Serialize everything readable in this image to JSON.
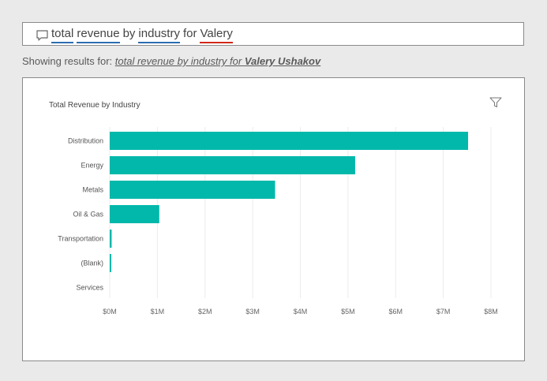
{
  "qa": {
    "words": [
      {
        "text": "total",
        "underline": "blue"
      },
      {
        "text": "revenue",
        "underline": "blue"
      },
      {
        "text": "by",
        "underline": "none"
      },
      {
        "text": "industry",
        "underline": "blue"
      },
      {
        "text": "for",
        "underline": "none"
      },
      {
        "text": "Valery",
        "underline": "red"
      }
    ],
    "icon": "speech-bubble-icon"
  },
  "showing": {
    "prefix": "Showing results for:",
    "link_text": "total revenue by industry for",
    "link_bold": "Valery Ushakov"
  },
  "chart_data": {
    "type": "bar",
    "orientation": "horizontal",
    "title": "Total Revenue by Industry",
    "categories": [
      "Distribution",
      "Energy",
      "Metals",
      "Oil & Gas",
      "Transportation",
      "(Blank)",
      "Services"
    ],
    "values": [
      7.52,
      5.15,
      3.47,
      1.04,
      0.04,
      0.02,
      0
    ],
    "xlim": [
      0,
      8
    ],
    "ticks": [
      "$0M",
      "$1M",
      "$2M",
      "$3M",
      "$4M",
      "$5M",
      "$6M",
      "$7M",
      "$8M"
    ],
    "color": "#01b8aa",
    "grid": true
  },
  "filter_icon": "filter-icon"
}
